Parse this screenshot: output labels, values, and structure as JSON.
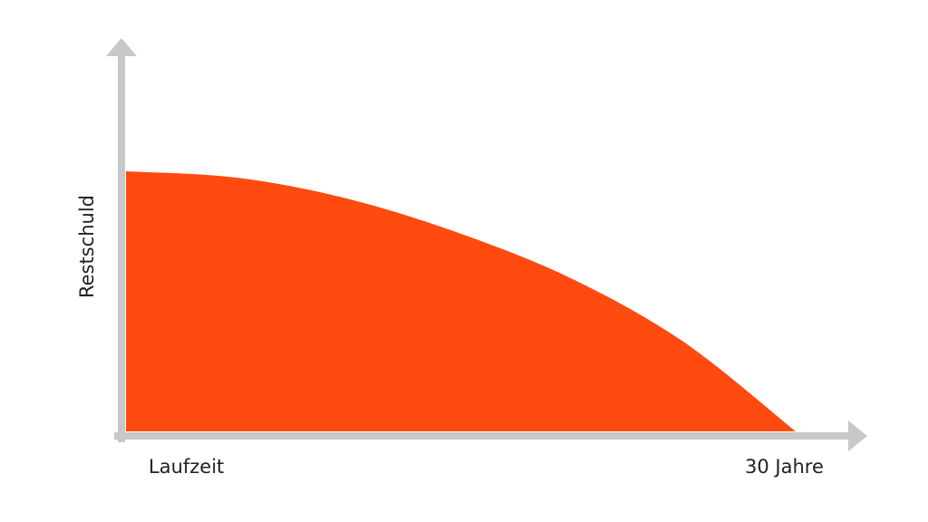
{
  "chart_data": {
    "type": "area",
    "ylabel": "Restschuld",
    "x_axis_labels": {
      "start": "Laufzeit",
      "end": "30 Jahre"
    },
    "x": [
      0,
      5,
      10,
      15,
      20,
      25,
      30
    ],
    "values": [
      100,
      97.5,
      89.3,
      76,
      58.6,
      34.3,
      0
    ],
    "xlim": [
      0,
      30
    ],
    "ylim": [
      0,
      100
    ],
    "grid": false,
    "legend": "none"
  },
  "colors": {
    "area": "#FF4A10",
    "axis": "#C8C8C8",
    "text": "#222222"
  }
}
